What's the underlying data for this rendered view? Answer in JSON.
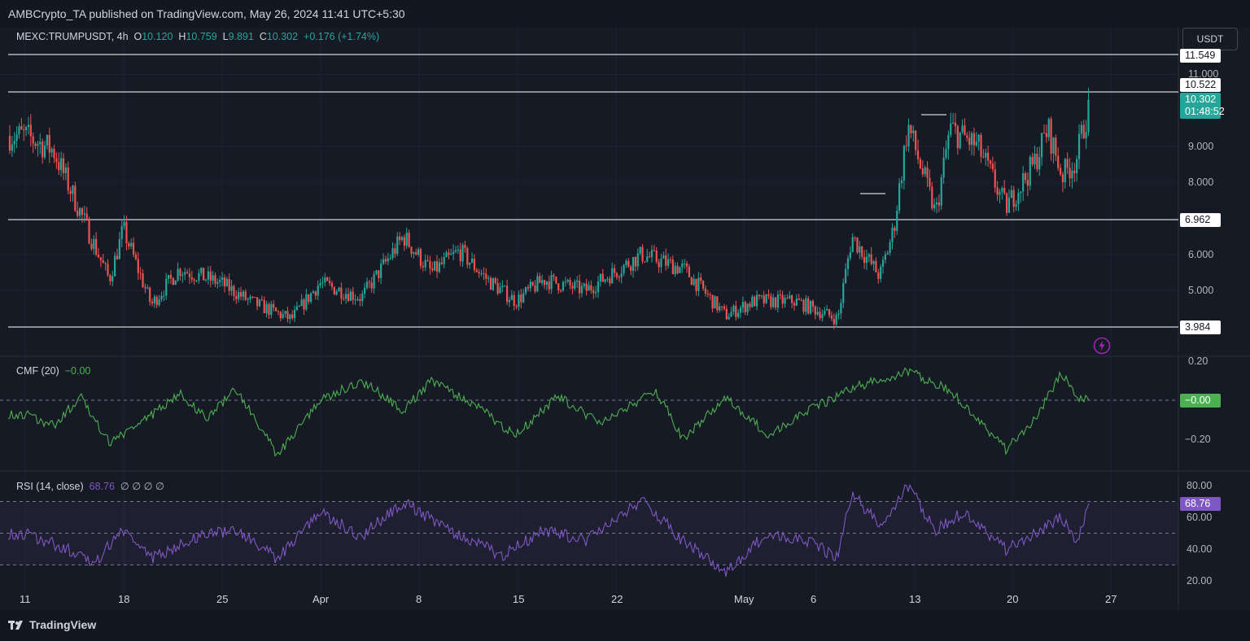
{
  "header": {
    "publisher_line": "AMBCrypto_TA published on TradingView.com, May 26, 2024 11:41 UTC+5:30"
  },
  "legend": {
    "symbol": "MEXC:TRUMPUSDT, 4h",
    "o_label": "O",
    "o_value": "10.120",
    "h_label": "H",
    "h_value": "10.759",
    "l_label": "L",
    "l_value": "9.891",
    "c_label": "C",
    "c_value": "10.302",
    "change": "+0.176 (+1.74%)"
  },
  "currency_button": "USDT",
  "price_axis": {
    "labels": [
      "11.000",
      "9.000",
      "8.000",
      "6.000",
      "5.000"
    ],
    "tags": {
      "r1": "11.549",
      "r2": "10.522",
      "current_price": "10.302",
      "countdown": "01:48:52",
      "s1": "6.962",
      "s2": "3.984"
    }
  },
  "cmf": {
    "title": "CMF (20)",
    "value": "−0.00",
    "axis_top": "0.20",
    "axis_bottom": "−0.20",
    "tag": "−0.00",
    "color": "#4caf50"
  },
  "rsi": {
    "title": "RSI (14, close)",
    "value": "68.76",
    "extras": "∅ ∅ ∅ ∅",
    "axis_labels": [
      "80.00",
      "60.00",
      "40.00",
      "20.00"
    ],
    "tag": "68.76",
    "color": "#7e57c2"
  },
  "x_axis_labels": [
    "11",
    "18",
    "25",
    "Apr",
    "8",
    "15",
    "22",
    "May",
    "6",
    "13",
    "20",
    "27"
  ],
  "footer": {
    "brand": "TradingView"
  },
  "colors": {
    "up": "#26a69a",
    "down": "#ef5350",
    "background": "#161a25",
    "level_line": "#d1d4dc"
  },
  "chart_data": [
    {
      "type": "candlestick",
      "series_name": "MEXC:TRUMPUSDT",
      "interval": "4h",
      "ylim": [
        3.984,
        11.549
      ],
      "horizontal_levels": [
        11.549,
        10.522,
        6.962,
        3.984
      ],
      "last": {
        "open": 10.12,
        "high": 10.759,
        "low": 9.891,
        "close": 10.302
      },
      "x_ticks": [
        "11",
        "18",
        "25",
        "Apr",
        "8",
        "15",
        "22",
        "May",
        "6",
        "13",
        "20",
        "27"
      ],
      "approx_path": [
        {
          "x": "Mar 11",
          "y": 9.3
        },
        {
          "x": "Mar 13",
          "y": 8.9
        },
        {
          "x": "Mar 15",
          "y": 7.1
        },
        {
          "x": "Mar 17",
          "y": 5.3
        },
        {
          "x": "Mar 18",
          "y": 6.7
        },
        {
          "x": "Mar 20",
          "y": 4.6
        },
        {
          "x": "Mar 22",
          "y": 5.6
        },
        {
          "x": "Mar 25",
          "y": 5.2
        },
        {
          "x": "Mar 27",
          "y": 4.7
        },
        {
          "x": "Mar 30",
          "y": 4.2
        },
        {
          "x": "Apr 1",
          "y": 5.2
        },
        {
          "x": "Apr 4",
          "y": 4.8
        },
        {
          "x": "Apr 7",
          "y": 6.5
        },
        {
          "x": "Apr 9",
          "y": 5.5
        },
        {
          "x": "Apr 11",
          "y": 6.1
        },
        {
          "x": "Apr 13",
          "y": 5.3
        },
        {
          "x": "Apr 15",
          "y": 4.7
        },
        {
          "x": "Apr 17",
          "y": 5.3
        },
        {
          "x": "Apr 20",
          "y": 5.0
        },
        {
          "x": "Apr 24",
          "y": 6.0
        },
        {
          "x": "Apr 27",
          "y": 5.6
        },
        {
          "x": "Apr 30",
          "y": 4.3
        },
        {
          "x": "May 2",
          "y": 4.7
        },
        {
          "x": "May 5",
          "y": 4.7
        },
        {
          "x": "May 8",
          "y": 4.2
        },
        {
          "x": "May 9",
          "y": 6.5
        },
        {
          "x": "May 11",
          "y": 5.4
        },
        {
          "x": "May 12",
          "y": 6.7
        },
        {
          "x": "May 13",
          "y": 9.6
        },
        {
          "x": "May 15",
          "y": 7.1
        },
        {
          "x": "May 16",
          "y": 9.5
        },
        {
          "x": "May 18",
          "y": 9.0
        },
        {
          "x": "May 20",
          "y": 7.3
        },
        {
          "x": "May 22",
          "y": 8.5
        },
        {
          "x": "May 23",
          "y": 9.5
        },
        {
          "x": "May 24",
          "y": 8.2
        },
        {
          "x": "May 25",
          "y": 8.6
        },
        {
          "x": "May 26",
          "y": 10.3
        }
      ]
    },
    {
      "type": "line",
      "series_name": "CMF (20)",
      "ylim": [
        -0.3,
        0.25
      ],
      "approx_path": [
        {
          "x": "Mar 11",
          "y": -0.07
        },
        {
          "x": "Mar 13",
          "y": -0.13
        },
        {
          "x": "Mar 15",
          "y": 0.02
        },
        {
          "x": "Mar 17",
          "y": -0.22
        },
        {
          "x": "Mar 20",
          "y": -0.08
        },
        {
          "x": "Mar 22",
          "y": 0.04
        },
        {
          "x": "Mar 24",
          "y": -0.1
        },
        {
          "x": "Mar 26",
          "y": 0.06
        },
        {
          "x": "Mar 29",
          "y": -0.28
        },
        {
          "x": "Apr 1",
          "y": 0.0
        },
        {
          "x": "Apr 4",
          "y": 0.1
        },
        {
          "x": "Apr 7",
          "y": -0.05
        },
        {
          "x": "Apr 9",
          "y": 0.1
        },
        {
          "x": "Apr 12",
          "y": -0.02
        },
        {
          "x": "Apr 15",
          "y": -0.18
        },
        {
          "x": "Apr 18",
          "y": 0.02
        },
        {
          "x": "Apr 21",
          "y": -0.12
        },
        {
          "x": "Apr 25",
          "y": 0.05
        },
        {
          "x": "Apr 27",
          "y": -0.2
        },
        {
          "x": "Apr 30",
          "y": 0.02
        },
        {
          "x": "May 3",
          "y": -0.18
        },
        {
          "x": "May 6",
          "y": -0.05
        },
        {
          "x": "May 9",
          "y": 0.06
        },
        {
          "x": "May 13",
          "y": 0.15
        },
        {
          "x": "May 16",
          "y": 0.05
        },
        {
          "x": "May 18",
          "y": -0.1
        },
        {
          "x": "May 20",
          "y": -0.25
        },
        {
          "x": "May 22",
          "y": -0.1
        },
        {
          "x": "May 24",
          "y": 0.14
        },
        {
          "x": "May 25",
          "y": 0.02
        },
        {
          "x": "May 26",
          "y": 0.0
        }
      ]
    },
    {
      "type": "line",
      "series_name": "RSI (14, close)",
      "ylim": [
        20,
        80
      ],
      "bands": [
        30,
        50,
        70
      ],
      "approx_path": [
        {
          "x": "Mar 11",
          "y": 50
        },
        {
          "x": "Mar 14",
          "y": 40
        },
        {
          "x": "Mar 16",
          "y": 32
        },
        {
          "x": "Mar 18",
          "y": 52
        },
        {
          "x": "Mar 20",
          "y": 34
        },
        {
          "x": "Mar 23",
          "y": 47
        },
        {
          "x": "Mar 26",
          "y": 52
        },
        {
          "x": "Mar 29",
          "y": 34
        },
        {
          "x": "Apr 1",
          "y": 64
        },
        {
          "x": "Apr 4",
          "y": 48
        },
        {
          "x": "Apr 7",
          "y": 70
        },
        {
          "x": "Apr 10",
          "y": 53
        },
        {
          "x": "Apr 14",
          "y": 36
        },
        {
          "x": "Apr 17",
          "y": 52
        },
        {
          "x": "Apr 20",
          "y": 45
        },
        {
          "x": "Apr 24",
          "y": 71
        },
        {
          "x": "Apr 27",
          "y": 45
        },
        {
          "x": "Apr 30",
          "y": 26
        },
        {
          "x": "May 3",
          "y": 50
        },
        {
          "x": "May 6",
          "y": 44
        },
        {
          "x": "May 8",
          "y": 35
        },
        {
          "x": "May 9",
          "y": 75
        },
        {
          "x": "May 11",
          "y": 55
        },
        {
          "x": "May 13",
          "y": 80
        },
        {
          "x": "May 15",
          "y": 52
        },
        {
          "x": "May 17",
          "y": 63
        },
        {
          "x": "May 20",
          "y": 40
        },
        {
          "x": "May 22",
          "y": 50
        },
        {
          "x": "May 24",
          "y": 60
        },
        {
          "x": "May 25",
          "y": 44
        },
        {
          "x": "May 26",
          "y": 68.76
        }
      ]
    }
  ]
}
